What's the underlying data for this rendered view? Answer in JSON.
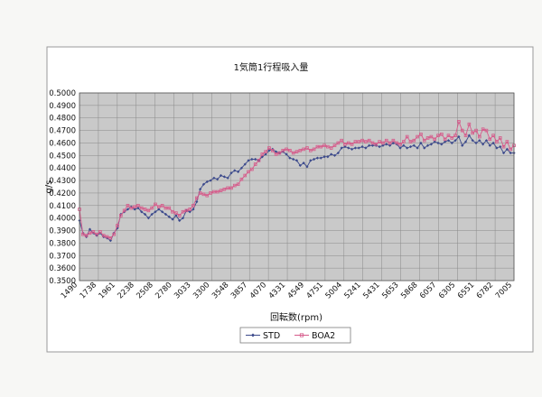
{
  "chart_data": {
    "type": "line",
    "title": "1気筒1行程吸入量",
    "xlabel": "回転数(rpm)",
    "ylabel": "g/s",
    "ylim": [
      0.35,
      0.5
    ],
    "y_ticks": [
      "0.5000",
      "0.4900",
      "0.4800",
      "0.4700",
      "0.4600",
      "0.4500",
      "0.4400",
      "0.4300",
      "0.4200",
      "0.4100",
      "0.4000",
      "0.3900",
      "0.3800",
      "0.3700",
      "0.3600",
      "0.3500"
    ],
    "x_tick_labels": [
      "1490",
      "1738",
      "1961",
      "2238",
      "2508",
      "2780",
      "3033",
      "3300",
      "3548",
      "3857",
      "4070",
      "4331",
      "4549",
      "4751",
      "5004",
      "5241",
      "5431",
      "5653",
      "5868",
      "6057",
      "6305",
      "6551",
      "6782",
      "7005"
    ],
    "grid": true,
    "legend_position": "bottom",
    "series": [
      {
        "name": "STD",
        "color": "#3c4a8c",
        "marker": "diamond",
        "values": [
          0.398,
          0.388,
          0.385,
          0.391,
          0.388,
          0.386,
          0.388,
          0.385,
          0.384,
          0.382,
          0.388,
          0.392,
          0.403,
          0.405,
          0.407,
          0.409,
          0.407,
          0.408,
          0.405,
          0.403,
          0.4,
          0.403,
          0.405,
          0.407,
          0.405,
          0.403,
          0.401,
          0.399,
          0.402,
          0.398,
          0.4,
          0.406,
          0.405,
          0.407,
          0.413,
          0.423,
          0.427,
          0.429,
          0.43,
          0.432,
          0.431,
          0.434,
          0.433,
          0.432,
          0.436,
          0.438,
          0.437,
          0.44,
          0.443,
          0.446,
          0.447,
          0.447,
          0.446,
          0.449,
          0.451,
          0.454,
          0.455,
          0.453,
          0.452,
          0.453,
          0.451,
          0.448,
          0.447,
          0.446,
          0.442,
          0.444,
          0.441,
          0.446,
          0.447,
          0.448,
          0.448,
          0.449,
          0.449,
          0.451,
          0.45,
          0.452,
          0.456,
          0.457,
          0.456,
          0.455,
          0.456,
          0.456,
          0.457,
          0.456,
          0.458,
          0.458,
          0.458,
          0.457,
          0.458,
          0.459,
          0.458,
          0.46,
          0.459,
          0.456,
          0.458,
          0.456,
          0.457,
          0.458,
          0.456,
          0.46,
          0.456,
          0.458,
          0.459,
          0.461,
          0.46,
          0.459,
          0.461,
          0.462,
          0.46,
          0.462,
          0.465,
          0.458,
          0.461,
          0.466,
          0.462,
          0.46,
          0.462,
          0.459,
          0.462,
          0.458,
          0.46,
          0.456,
          0.457,
          0.452,
          0.455,
          0.452,
          0.452
        ]
      },
      {
        "name": "BOA2",
        "color": "#d65a8a",
        "marker": "square",
        "values": [
          0.407,
          0.387,
          0.386,
          0.388,
          0.389,
          0.387,
          0.389,
          0.386,
          0.385,
          0.384,
          0.387,
          0.394,
          0.402,
          0.406,
          0.41,
          0.408,
          0.409,
          0.41,
          0.408,
          0.407,
          0.406,
          0.408,
          0.411,
          0.409,
          0.41,
          0.408,
          0.408,
          0.405,
          0.404,
          0.402,
          0.405,
          0.406,
          0.407,
          0.41,
          0.416,
          0.42,
          0.419,
          0.418,
          0.42,
          0.421,
          0.421,
          0.422,
          0.423,
          0.424,
          0.424,
          0.426,
          0.427,
          0.431,
          0.434,
          0.437,
          0.439,
          0.443,
          0.446,
          0.451,
          0.453,
          0.456,
          0.454,
          0.451,
          0.452,
          0.454,
          0.455,
          0.454,
          0.452,
          0.453,
          0.454,
          0.455,
          0.456,
          0.454,
          0.455,
          0.457,
          0.457,
          0.458,
          0.457,
          0.456,
          0.458,
          0.46,
          0.462,
          0.459,
          0.46,
          0.459,
          0.461,
          0.461,
          0.462,
          0.461,
          0.462,
          0.46,
          0.459,
          0.461,
          0.46,
          0.462,
          0.46,
          0.462,
          0.46,
          0.459,
          0.461,
          0.465,
          0.461,
          0.462,
          0.465,
          0.467,
          0.462,
          0.464,
          0.465,
          0.463,
          0.466,
          0.467,
          0.463,
          0.466,
          0.464,
          0.466,
          0.477,
          0.47,
          0.466,
          0.475,
          0.468,
          0.47,
          0.465,
          0.471,
          0.47,
          0.463,
          0.466,
          0.461,
          0.464,
          0.457,
          0.461,
          0.455,
          0.458
        ]
      }
    ]
  }
}
